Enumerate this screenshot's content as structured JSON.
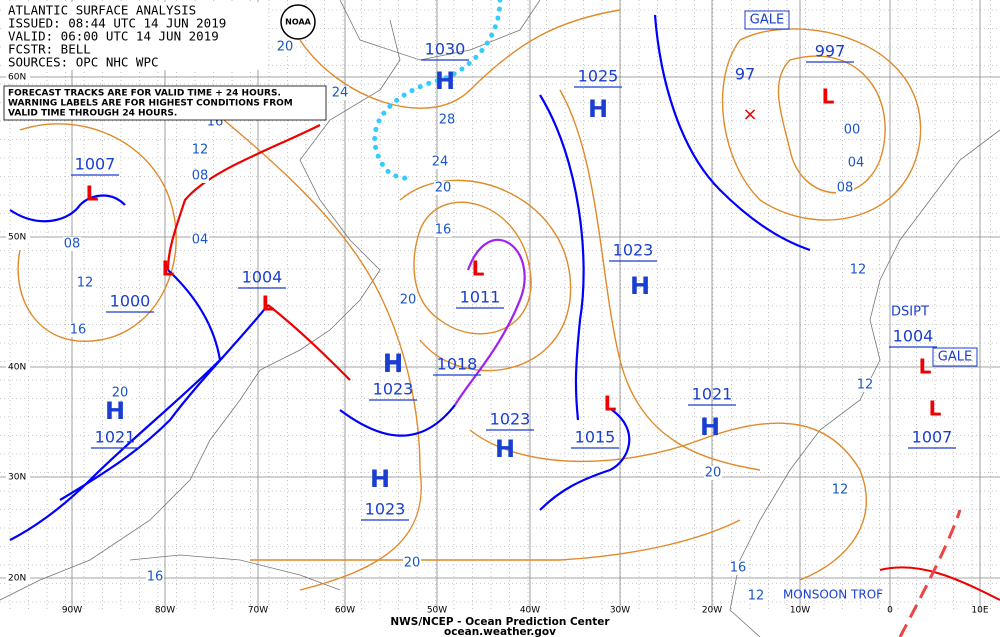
{
  "header": {
    "title": "ATLANTIC SURFACE ANALYSIS",
    "issued": "ISSUED: 08:44 UTC 14 JUN 2019",
    "valid": "VALID: 06:00 UTC 14 JUN 2019",
    "forecaster": "FCSTR: BELL",
    "sources": "SOURCES: OPC NHC WPC"
  },
  "logo": "NOAA",
  "note": [
    "FORECAST TRACKS ARE FOR VALID TIME + 24 HOURS.",
    "WARNING LABELS ARE FOR HIGHEST CONDITIONS FROM",
    "VALID TIME THROUGH 24 HOURS."
  ],
  "centers": [
    {
      "type": "H",
      "pressure": "1030"
    },
    {
      "type": "H",
      "pressure": "1025"
    },
    {
      "type": "L",
      "pressure": "997"
    },
    {
      "type": "L",
      "pressure": "1007"
    },
    {
      "type": "L",
      "pressure": "1004"
    },
    {
      "type": "L",
      "pressure": "1000"
    },
    {
      "type": "H",
      "pressure": "1023"
    },
    {
      "type": "L",
      "pressure": "1011"
    },
    {
      "type": "H",
      "pressure": "1018"
    },
    {
      "type": "H",
      "pressure": "1023"
    },
    {
      "type": "H",
      "pressure": "1023"
    },
    {
      "type": "L",
      "pressure": "1015"
    },
    {
      "type": "H",
      "pressure": "1021"
    },
    {
      "type": "H",
      "pressure": "1021"
    },
    {
      "type": "H",
      "pressure": "1023"
    },
    {
      "type": "L",
      "pressure": "1004"
    },
    {
      "type": "L",
      "pressure": "1007"
    }
  ],
  "extra_pressure": "97",
  "warnings": [
    "GALE",
    "GALE",
    "DSIPT"
  ],
  "feature_label": "MONSOON TROF",
  "latitudes": [
    "60N",
    "50N",
    "40N",
    "30N",
    "20N"
  ],
  "longitudes": [
    "90W",
    "80W",
    "70W",
    "60W",
    "50W",
    "40W",
    "30W",
    "20W",
    "10W",
    "0",
    "10E"
  ],
  "isobar_labels": [
    "24",
    "28",
    "24",
    "20",
    "16",
    "16",
    "12",
    "08",
    "04",
    "08",
    "12",
    "16",
    "20",
    "20",
    "20",
    "12",
    "20",
    "16",
    "12",
    "16",
    "00",
    "04",
    "08",
    "12",
    "12",
    "20"
  ],
  "footer": {
    "center": "NWS/NCEP - Ocean Prediction Center",
    "site": "ocean.weather.gov"
  }
}
